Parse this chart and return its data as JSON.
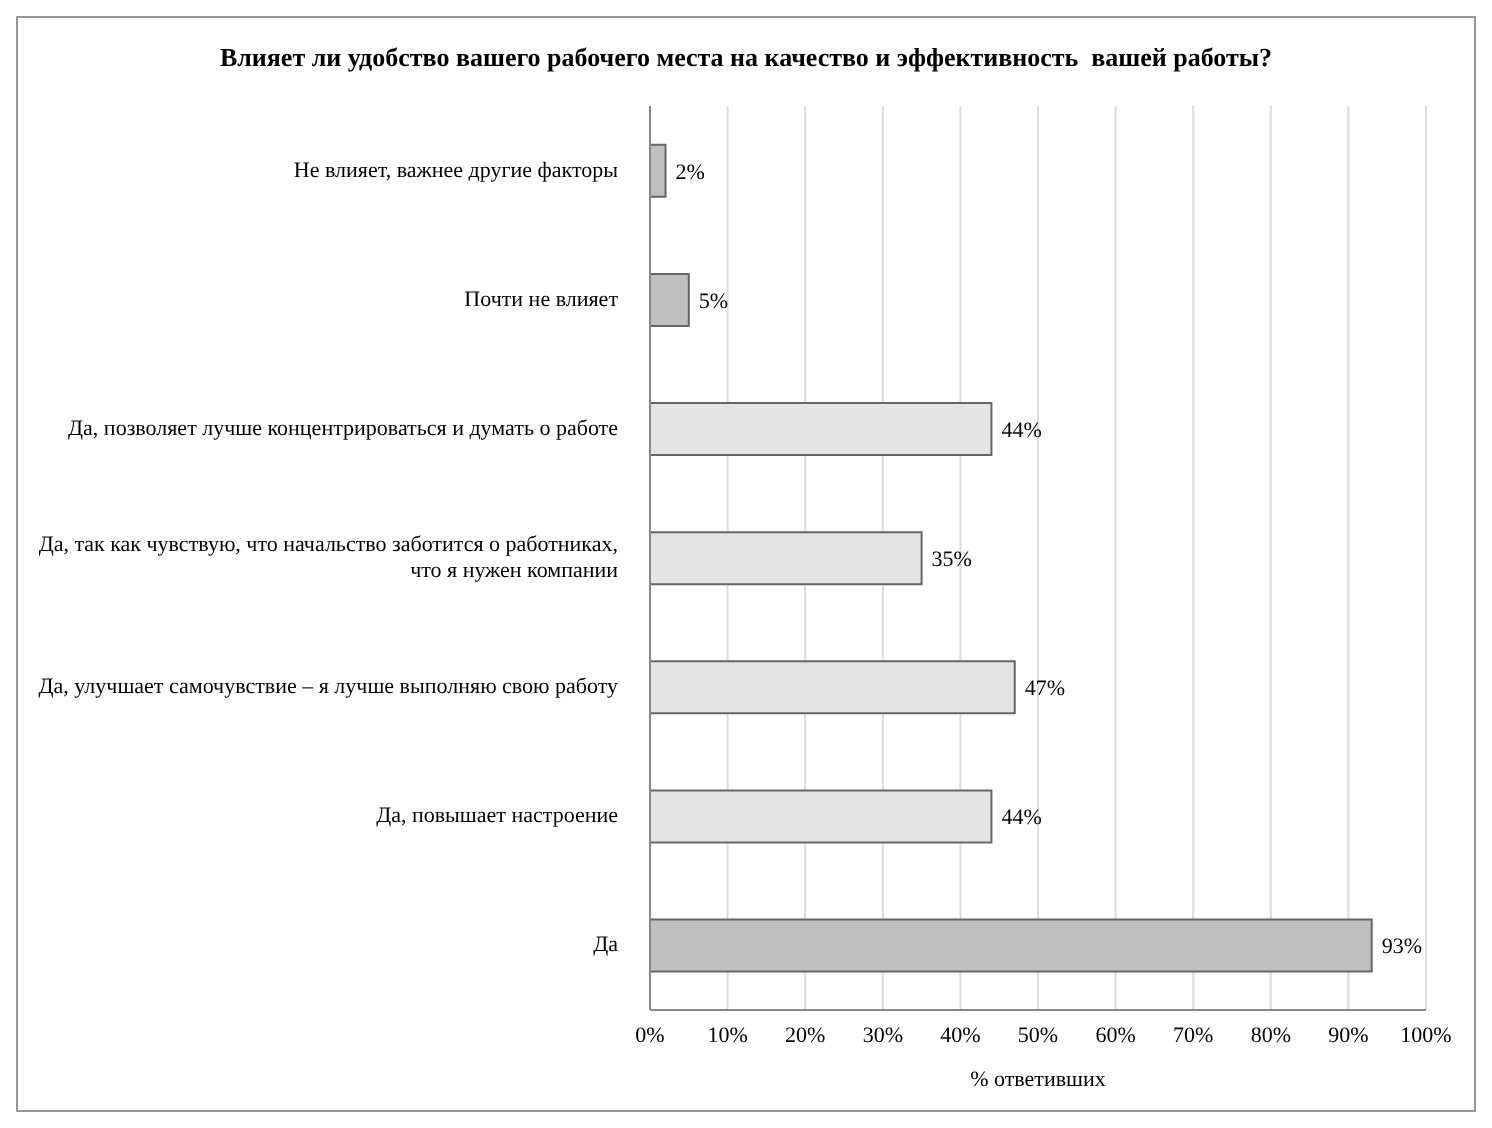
{
  "chart_data": {
    "type": "bar",
    "orientation": "horizontal",
    "title": "Влияет ли удобство вашего рабочего места на качество и эффективность  вашей работы?",
    "xlabel": "% ответивших",
    "categories": [
      "Не влияет, важнее другие факторы",
      "Почти не влияет",
      "Да, позволяет лучше концентрироваться и думать о работе",
      "Да, так как чувствую, что начальство заботится о работниках, что я нужен компании",
      "Да, улучшает  самочувствие – я лучше выполняю свою работу",
      "Да, повышает настроение",
      "Да"
    ],
    "values": [
      2,
      5,
      44,
      35,
      47,
      44,
      93
    ],
    "colors": [
      "#c0c0c0",
      "#c0c0c0",
      "#e4e4e4",
      "#e4e4e4",
      "#e4e4e4",
      "#e4e4e4",
      "#c0c0c0"
    ],
    "value_labels": [
      "2%",
      "5%",
      "44%",
      "35%",
      "47%",
      "44%",
      "93%"
    ],
    "xlim": [
      0,
      100
    ],
    "xticks": [
      {
        "value": 0,
        "label": "0%"
      },
      {
        "value": 10,
        "label": "10%"
      },
      {
        "value": 20,
        "label": "20%"
      },
      {
        "value": 30,
        "label": "30%"
      },
      {
        "value": 40,
        "label": "40%"
      },
      {
        "value": 50,
        "label": "50%"
      },
      {
        "value": 60,
        "label": "60%"
      },
      {
        "value": 70,
        "label": "70%"
      },
      {
        "value": 80,
        "label": "80%"
      },
      {
        "value": 90,
        "label": "90%"
      },
      {
        "value": 100,
        "label": "100%"
      }
    ],
    "grid": "x",
    "legend": false
  }
}
